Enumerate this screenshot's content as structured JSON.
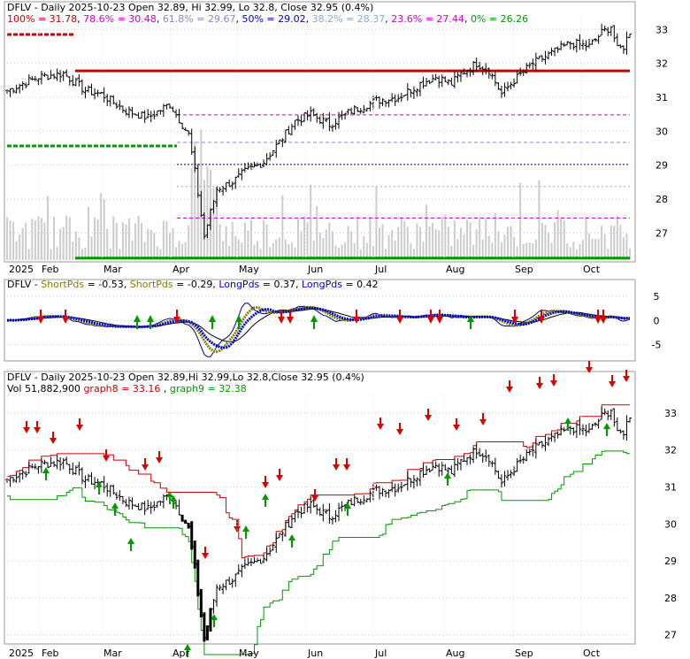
{
  "colors": {
    "fib_100": "#cc0000",
    "fib_786": "#cc00cc",
    "fib_618": "#8888cc",
    "fib_50": "#0000cc",
    "fib_382": "#88aacc",
    "fib_236": "#cc00cc",
    "fib_0": "#009900",
    "short_fast": "#000080",
    "short_slow": "#808000",
    "long_fast": "#0000cc",
    "long_slow": "#000000",
    "graph8": "#cc0000",
    "graph9": "#009900",
    "price": "#000000",
    "arrow_up": "#009900",
    "arrow_down": "#dd0000",
    "volume": "#cccccc",
    "grid": "#999999"
  },
  "chart_data": [
    {
      "type": "candlestick",
      "title": "DFLV - Daily 2025-10-23 Open 32.89, Hi 32.99, Lo 32.8, Close 32.95 (0.4%)",
      "fib_legend": [
        {
          "label": "100% = 31.78",
          "color_key": "fib_100",
          "level": 31.78
        },
        {
          "label": "78.6% = 30.48",
          "color_key": "fib_786",
          "level": 30.48
        },
        {
          "label": "61.8% = 29.67",
          "color_key": "fib_618",
          "level": 29.67
        },
        {
          "label": "50% = 29.02",
          "color_key": "fib_50",
          "level": 29.02
        },
        {
          "label": "38.2% = 28.37",
          "color_key": "fib_382",
          "level": 28.37
        },
        {
          "label": "23.6% = 27.44",
          "color_key": "fib_236",
          "level": 27.44
        },
        {
          "label": "0% = 26.26",
          "color_key": "fib_0",
          "level": 26.26
        }
      ],
      "y_ticks": [
        "33",
        "32",
        "31",
        "30",
        "29",
        "28",
        "27"
      ],
      "ylim": [
        26.2,
        33.4
      ],
      "x_labels": [
        "2025",
        "Feb",
        "Mar",
        "Apr",
        "May",
        "Jun",
        "Jul",
        "Aug",
        "Sep",
        "Oct"
      ]
    },
    {
      "type": "line",
      "title": "DFLV - ShortPds = -0.53, ShortPds = -0.29, LongPds = 0.37, LongPds = 0.42",
      "legend": [
        {
          "text": "DFLV - ",
          "color_key": "price"
        },
        {
          "text": "ShortPds",
          "color_key": "short_slow"
        },
        {
          "text": " = -0.53, ",
          "color_key": "price"
        },
        {
          "text": "ShortPds",
          "color_key": "short_slow"
        },
        {
          "text": " = -0.29, ",
          "color_key": "price"
        },
        {
          "text": "LongPds",
          "color_key": "long_fast"
        },
        {
          "text": " = 0.37, ",
          "color_key": "price"
        },
        {
          "text": "LongPds",
          "color_key": "long_fast"
        },
        {
          "text": " = 0.42",
          "color_key": "price"
        }
      ],
      "y_ticks": [
        "5",
        "0",
        "-5"
      ],
      "ylim": [
        -8,
        7
      ]
    },
    {
      "type": "candlestick",
      "title": "DFLV - Daily 2025-10-23 Open 32.89,Hi 32.99,Lo 32.8,Close 32.95 (0.4%)",
      "subtitle": "Vol 51,882,900",
      "series_legend": [
        {
          "name": "graph8",
          "text": "graph8 = 33.16",
          "color_key": "graph8"
        },
        {
          "name": "graph9",
          "text": "graph9 = 32.38",
          "color_key": "graph9"
        }
      ],
      "y_ticks": [
        "33",
        "32",
        "31",
        "30",
        "29",
        "28",
        "27"
      ],
      "ylim": [
        26.8,
        33.5
      ],
      "x_labels": [
        "2025",
        "Feb",
        "Mar",
        "Apr",
        "May",
        "Jun",
        "Jul",
        "Aug",
        "Sep",
        "Oct"
      ]
    }
  ]
}
